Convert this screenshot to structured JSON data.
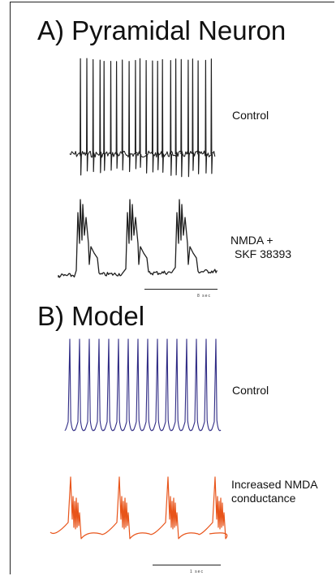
{
  "panel_a": {
    "title": "A) Pyramidal Neuron",
    "trace_control": {
      "label": "Control",
      "color": "#1f1f1f",
      "spikes": 23
    },
    "trace_drug": {
      "label_line1": "NMDA +",
      "label_line2": "SKF 38393",
      "color": "#1f1f1f",
      "bursts": 3
    },
    "scale_bar": "8 sec"
  },
  "panel_b": {
    "title": "B) Model",
    "trace_control": {
      "label": "Control",
      "color": "#2e2a84",
      "spikes": 16
    },
    "trace_nmda": {
      "label_line1": "Increased NMDA",
      "label_line2": "conductance",
      "color": "#e8541a",
      "bursts": 4
    },
    "scale_bar": "1 sec"
  }
}
